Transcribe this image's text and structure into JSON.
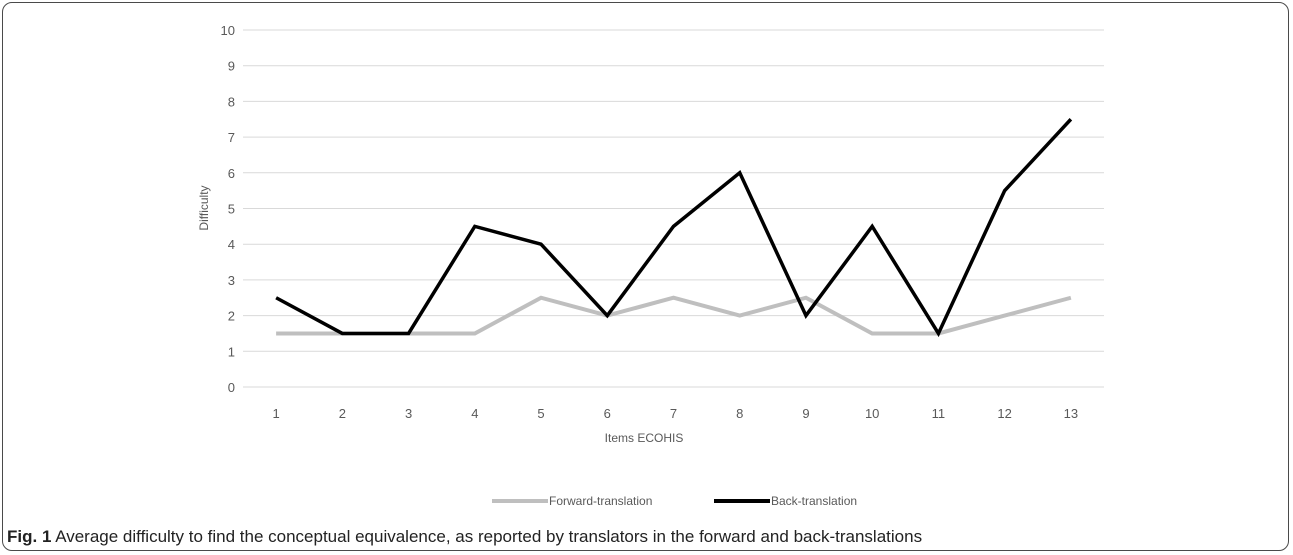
{
  "figure": {
    "caption_label": "Fig. 1",
    "caption_text": " Average difficulty to find the conceptual equivalence, as reported by translators in the forward and back-translations"
  },
  "chart_data": {
    "type": "line",
    "categories": [
      "1",
      "2",
      "3",
      "4",
      "5",
      "6",
      "7",
      "8",
      "9",
      "10",
      "11",
      "12",
      "13"
    ],
    "xlabel": "Items ECOHIS",
    "ylabel": "Difficulty",
    "ylim": [
      0,
      10
    ],
    "yticks": [
      0,
      1,
      2,
      3,
      4,
      5,
      6,
      7,
      8,
      9,
      10
    ],
    "grid": true,
    "legend_position": "bottom",
    "series": [
      {
        "name": "Forward-translation",
        "color": "#bfbfbf",
        "values": [
          1.5,
          1.5,
          1.5,
          1.5,
          2.5,
          2,
          2.5,
          2,
          2.5,
          1.5,
          1.5,
          2,
          2.5
        ]
      },
      {
        "name": "Back-translation",
        "color": "#000000",
        "values": [
          2.5,
          1.5,
          1.5,
          4.5,
          4,
          2,
          4.5,
          6,
          2,
          4.5,
          1.5,
          5.5,
          7.5
        ]
      }
    ]
  }
}
